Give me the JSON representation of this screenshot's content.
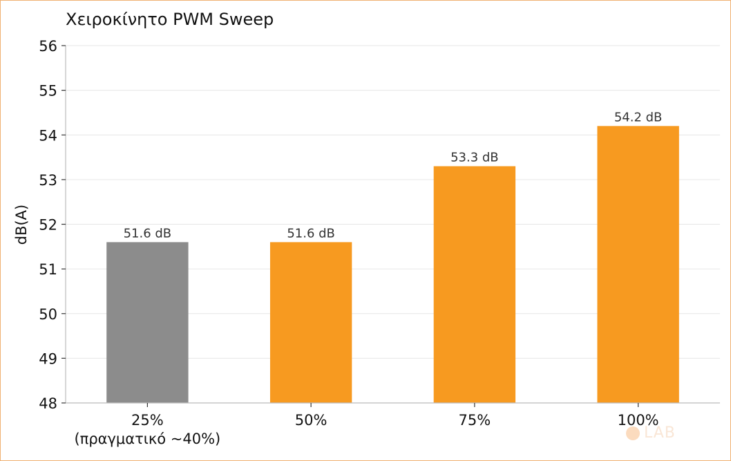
{
  "chart_data": {
    "type": "bar",
    "title": "Χειροκίνητο PWM Sweep",
    "ylabel": "dB(A)",
    "xlabel": "",
    "ylim": [
      48,
      56
    ],
    "yticks": [
      48,
      49,
      50,
      51,
      52,
      53,
      54,
      55,
      56
    ],
    "grid": true,
    "categories": [
      [
        "25%",
        "(πραγματικό ~40%)"
      ],
      [
        "50%"
      ],
      [
        "75%"
      ],
      [
        "100%"
      ]
    ],
    "values": [
      51.6,
      51.6,
      53.3,
      54.2
    ],
    "data_labels": [
      "51.6 dB",
      "51.6 dB",
      "53.3 dB",
      "54.2 dB"
    ],
    "colors": [
      "#8c8c8c",
      "#f79a20",
      "#f79a20",
      "#f79a20"
    ],
    "grid_color": "#e6e6e6",
    "axis_color": "#bbbbbb"
  },
  "watermark": {
    "text": "LAB"
  }
}
